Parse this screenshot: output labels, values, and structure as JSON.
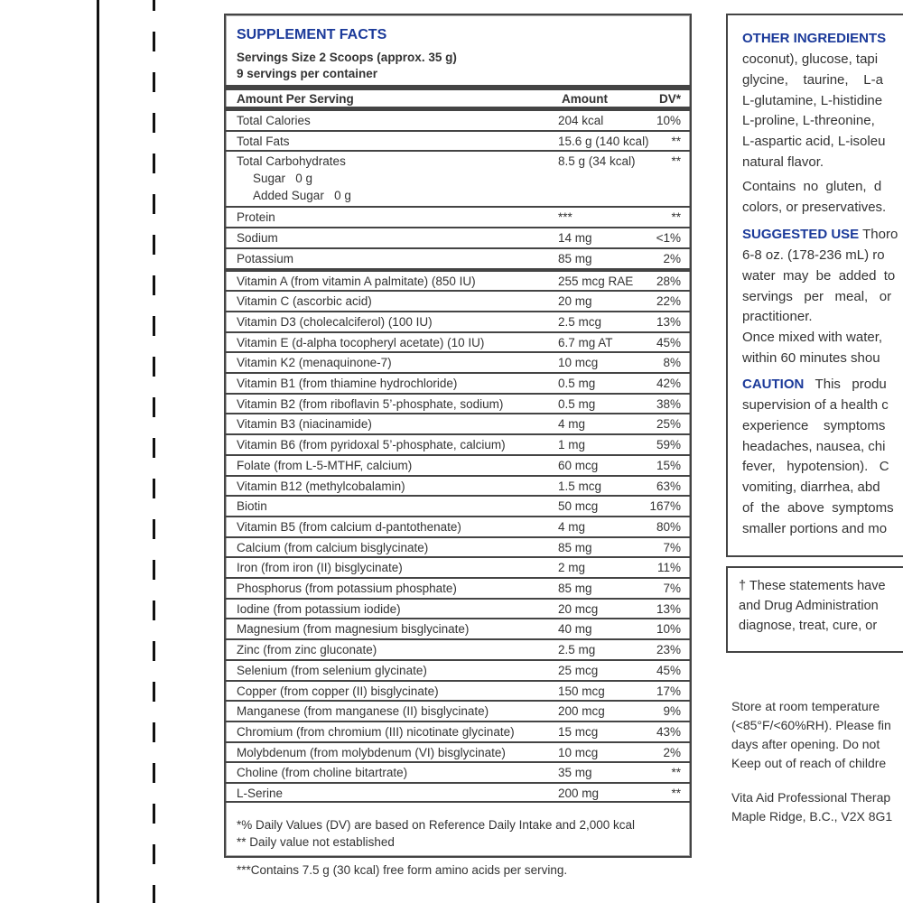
{
  "facts": {
    "title": "SUPPLEMENT FACTS",
    "serving_size": "Servings Size 2 Scoops (approx. 35 g)",
    "servings_per_container": "9 servings per container",
    "header": {
      "name": "Amount Per Serving",
      "amount": "Amount",
      "dv": "DV*"
    },
    "macros": [
      {
        "name": "Total Calories",
        "amount": "204 kcal",
        "dv": "10%"
      },
      {
        "name": "Total Fats",
        "amount": "15.6 g (140 kcal)",
        "dv": "**"
      },
      {
        "name": "Total Carbohydrates",
        "amount": "8.5 g (34 kcal)",
        "dv": "**",
        "sub": [
          "Sugar   0 g",
          "Added Sugar   0 g"
        ]
      },
      {
        "name": "Protein",
        "amount": "***",
        "dv": "**"
      },
      {
        "name": "Sodium",
        "amount": "14 mg",
        "dv": "<1%"
      },
      {
        "name": "Potassium",
        "amount": "85 mg",
        "dv": "2%"
      }
    ],
    "nutrients": [
      {
        "name": "Vitamin A (from vitamin A palmitate) (850 IU)",
        "amount": "255 mcg RAE",
        "dv": "28%"
      },
      {
        "name": "Vitamin C (ascorbic acid)",
        "amount": "20 mg",
        "dv": "22%"
      },
      {
        "name": "Vitamin D3 (cholecalciferol) (100 IU)",
        "amount": "2.5 mcg",
        "dv": "13%"
      },
      {
        "name": "Vitamin E (d-alpha tocopheryl acetate) (10 IU)",
        "amount": "6.7 mg AT",
        "dv": "45%"
      },
      {
        "name": "Vitamin K2 (menaquinone-7)",
        "amount": "10 mcg",
        "dv": "8%"
      },
      {
        "name": "Vitamin B1 (from thiamine hydrochloride)",
        "amount": "0.5 mg",
        "dv": "42%"
      },
      {
        "name": "Vitamin B2 (from riboflavin 5’-phosphate, sodium)",
        "amount": "0.5  mg",
        "dv": "38%"
      },
      {
        "name": "Vitamin B3 (niacinamide)",
        "amount": "4 mg",
        "dv": "25%"
      },
      {
        "name": "Vitamin B6 (from pyridoxal 5’-phosphate, calcium)",
        "amount": "1 mg",
        "dv": "59%"
      },
      {
        "name": "Folate (from L-5-MTHF, calcium)",
        "amount": "60 mcg",
        "dv": "15%"
      },
      {
        "name": "Vitamin B12 (methylcobalamin)",
        "amount": "1.5 mcg",
        "dv": "63%"
      },
      {
        "name": "Biotin",
        "amount": "50 mcg",
        "dv": "167%"
      },
      {
        "name": "Vitamin B5 (from calcium d-pantothenate)",
        "amount": "4 mg",
        "dv": "80%"
      },
      {
        "name": "Calcium (from calcium bisglycinate)",
        "amount": "85 mg",
        "dv": "7%"
      },
      {
        "name": "Iron (from iron (II) bisglycinate)",
        "amount": "2 mg",
        "dv": "11%"
      },
      {
        "name": "Phosphorus (from potassium phosphate)",
        "amount": "85 mg",
        "dv": "7%"
      },
      {
        "name": "Iodine (from potassium iodide)",
        "amount": "20 mcg",
        "dv": "13%"
      },
      {
        "name": "Magnesium (from magnesium bisglycinate)",
        "amount": "40 mg",
        "dv": "10%"
      },
      {
        "name": "Zinc (from zinc gluconate)",
        "amount": "2.5 mg",
        "dv": "23%"
      },
      {
        "name": "Selenium (from selenium glycinate)",
        "amount": "25 mcg",
        "dv": "45%"
      },
      {
        "name": "Copper (from copper (II) bisglycinate)",
        "amount": "150 mcg",
        "dv": "17%"
      },
      {
        "name": "Manganese (from manganese (II) bisglycinate)",
        "amount": "200 mcg",
        "dv": "9%"
      },
      {
        "name": "Chromium (from chromium (III) nicotinate glycinate)",
        "amount": "15 mcg",
        "dv": "43%"
      },
      {
        "name": "Molybdenum (from molybdenum (VI) bisglycinate)",
        "amount": "10  mcg",
        "dv": "2%"
      },
      {
        "name": "Choline (from choline bitartrate)",
        "amount": "35 mg",
        "dv": "**"
      },
      {
        "name": "L-Serine",
        "amount": "200 mg",
        "dv": "**"
      }
    ],
    "footnotes": [
      "*% Daily Values (DV) are based on Reference Daily Intake and 2,000 kcal",
      "** Daily value not established"
    ],
    "amino_note": "***Contains 7.5 g (30 kcal) free form amino acids per serving."
  },
  "right": {
    "other_ingredients_heading": "OTHER INGREDIENTS",
    "other_ingredients_lines": [
      "coconut), glucose, tapi",
      "glycine,    taurine,    L-a",
      "L-glutamine, L-histidine",
      "L-proline, L-threonine, ",
      "L-aspartic acid, L-isoleu",
      "natural flavor."
    ],
    "contains_lines": [
      "Contains  no  gluten,  d",
      "colors, or preservatives."
    ],
    "suggested_use_heading": "SUGGESTED USE",
    "suggested_use_first": " Thoro",
    "suggested_use_lines": [
      "6-8 oz. (178-236 mL) ro",
      "water  may  be  added  to",
      "servings   per   meal,   or",
      "practitioner.",
      "Once mixed with water,",
      "within 60 minutes shou"
    ],
    "caution_heading": "CAUTION",
    "caution_first": "   This   produ",
    "caution_lines": [
      "supervision of a health c",
      "experience    symptoms",
      "headaches, nausea, chi",
      "fever,   hypotension).   C",
      "vomiting, diarrhea, abd",
      "of  the  above  symptoms",
      "smaller portions and mo"
    ],
    "disclaimer_lines": [
      "† These statements have",
      "and Drug Administration",
      "diagnose, treat, cure, or"
    ],
    "storage_lines": [
      "Store at room temperature",
      "(<85°F/<60%RH). Please fin",
      "days after opening. Do not",
      "Keep out of reach of childre"
    ],
    "company_lines": [
      "Vita Aid Professional Therap",
      "Maple Ridge, B.C., V2X 8G1"
    ]
  }
}
